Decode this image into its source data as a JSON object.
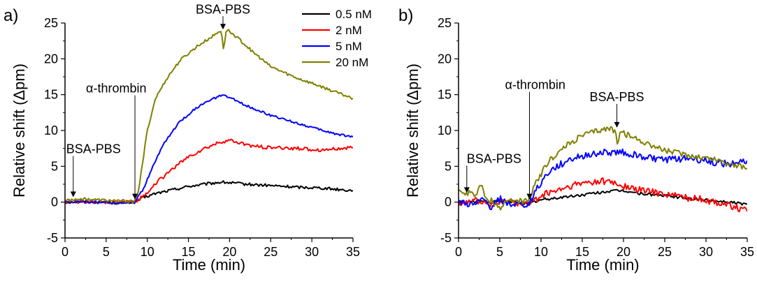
{
  "chart_data": [
    {
      "type": "line",
      "panel_label": "a)",
      "xlabel": "Time (min)",
      "ylabel": "Relative shift (Δpm)",
      "xlim": [
        0,
        35
      ],
      "ylim": [
        -5,
        25
      ],
      "xticks": [
        0,
        5,
        10,
        15,
        20,
        25,
        30,
        35
      ],
      "yticks": [
        -5,
        0,
        5,
        10,
        15,
        20,
        25
      ],
      "legend": "top-right",
      "annotations": [
        {
          "text": "BSA-PBS",
          "x": 1.0,
          "y": 0.6
        },
        {
          "text": "α-thrombin",
          "x": 8.5,
          "y": 0.3
        },
        {
          "text": "BSA-PBS",
          "x": 19.2,
          "y": 24.0
        }
      ],
      "series": [
        {
          "name": "0.5 nM",
          "color": "#000000",
          "noise": 0.2,
          "x": [
            0,
            2,
            4,
            6,
            8.5,
            9.5,
            11,
            13,
            15,
            17,
            19,
            20,
            22,
            25,
            28,
            31,
            33,
            35
          ],
          "y": [
            0,
            0.1,
            0,
            -0.1,
            0,
            0.6,
            1.2,
            1.7,
            2.2,
            2.5,
            2.8,
            2.7,
            2.5,
            2.3,
            2.1,
            2.0,
            1.8,
            1.6
          ]
        },
        {
          "name": "2 nM",
          "color": "#ff0000",
          "noise": 0.25,
          "x": [
            0,
            2,
            4,
            6,
            8.5,
            9.5,
            11,
            13,
            15,
            17,
            19,
            20,
            21,
            23,
            25,
            28,
            31,
            33,
            35
          ],
          "y": [
            0,
            0.1,
            -0.1,
            0,
            0,
            0.8,
            2.6,
            4.6,
            6.3,
            7.5,
            8.4,
            8.6,
            8.3,
            7.8,
            7.6,
            7.5,
            7.3,
            7.4,
            7.6
          ]
        },
        {
          "name": "5 nM",
          "color": "#0000ff",
          "noise": 0.15,
          "x": [
            0,
            2,
            4,
            6,
            8.5,
            9.5,
            10.5,
            12,
            14,
            16,
            18,
            19,
            20,
            22,
            25,
            28,
            31,
            33,
            35
          ],
          "y": [
            0,
            0.1,
            0,
            -0.1,
            0,
            1.8,
            4.5,
            8.2,
            11.3,
            13.2,
            14.4,
            14.9,
            14.6,
            13.5,
            12.1,
            11.1,
            10.1,
            9.5,
            9.1
          ]
        },
        {
          "name": "20 nM",
          "color": "#808000",
          "noise": 0.2,
          "x": [
            0,
            2,
            4,
            6,
            8.5,
            9,
            9.5,
            10,
            11,
            12.5,
            14,
            16,
            18,
            19,
            19.3,
            19.6,
            20,
            21,
            23,
            25,
            28,
            31,
            33,
            35
          ],
          "y": [
            0.2,
            0.5,
            0.3,
            0.2,
            0.1,
            2.0,
            6.0,
            10.0,
            14.5,
            17.5,
            19.8,
            21.7,
            23.2,
            24.0,
            21.0,
            24.2,
            23.8,
            22.9,
            20.8,
            18.9,
            17.4,
            16.2,
            15.3,
            14.5
          ]
        }
      ]
    },
    {
      "type": "line",
      "panel_label": "b)",
      "xlabel": "Time (min)",
      "ylabel": "Relative shift (Δpm)",
      "xlim": [
        0,
        35
      ],
      "ylim": [
        -5,
        25
      ],
      "xticks": [
        0,
        5,
        10,
        15,
        20,
        25,
        30,
        35
      ],
      "yticks": [
        -5,
        0,
        5,
        10,
        15,
        20,
        25
      ],
      "annotations": [
        {
          "text": "BSA-PBS",
          "x": 1.0,
          "y": 1.2
        },
        {
          "text": "α-thrombin",
          "x": 8.6,
          "y": 0.3
        },
        {
          "text": "BSA-PBS",
          "x": 19.2,
          "y": 10.3
        }
      ],
      "series": [
        {
          "name": "0.5 nM",
          "color": "#000000",
          "noise": 0.2,
          "x": [
            0,
            2,
            4,
            6,
            8.5,
            10,
            12,
            15,
            18,
            20,
            22,
            25,
            28,
            31,
            33,
            35
          ],
          "y": [
            0,
            0.1,
            0,
            0.1,
            -0.2,
            0.3,
            0.6,
            1.0,
            1.5,
            1.6,
            1.2,
            0.9,
            0.5,
            0.2,
            0,
            -0.3
          ]
        },
        {
          "name": "2 nM",
          "color": "#ff0000",
          "noise": 0.5,
          "x": [
            0,
            2,
            4,
            6,
            8.5,
            10,
            12,
            14,
            16,
            18,
            20,
            22,
            25,
            28,
            31,
            33,
            35
          ],
          "y": [
            0,
            0.3,
            -0.4,
            0.2,
            -0.3,
            0.9,
            1.6,
            2.3,
            2.8,
            2.9,
            2.2,
            1.7,
            1.2,
            0.6,
            0.1,
            -0.5,
            -1.3
          ]
        },
        {
          "name": "5 nM",
          "color": "#0000ff",
          "noise": 0.5,
          "x": [
            0,
            2,
            3,
            4,
            5,
            6,
            8.5,
            9.5,
            11,
            13,
            15,
            17,
            19,
            20,
            22,
            25,
            28,
            31,
            33,
            35
          ],
          "y": [
            0,
            -0.5,
            0.4,
            -0.8,
            0.5,
            -0.3,
            -0.4,
            2.0,
            4.2,
            5.7,
            6.5,
            6.9,
            6.9,
            7.0,
            6.4,
            5.9,
            6.1,
            5.6,
            5.3,
            5.8
          ]
        },
        {
          "name": "20 nM",
          "color": "#808000",
          "noise": 0.4,
          "x": [
            0,
            0.8,
            1.5,
            2.2,
            2.8,
            3.3,
            4,
            5,
            6,
            8.5,
            9.5,
            11,
            13,
            15,
            17,
            18.5,
            19,
            19.3,
            19.6,
            20,
            22,
            25,
            28,
            31,
            33,
            35
          ],
          "y": [
            1.8,
            1.1,
            1.4,
            1.0,
            2.7,
            0.2,
            0.3,
            -0.9,
            0.3,
            0.1,
            3.0,
            5.8,
            7.8,
            9.3,
            10.0,
            10.3,
            9.8,
            8.0,
            10.3,
            9.6,
            8.6,
            7.2,
            6.5,
            6.0,
            5.3,
            4.7
          ]
        }
      ]
    }
  ]
}
